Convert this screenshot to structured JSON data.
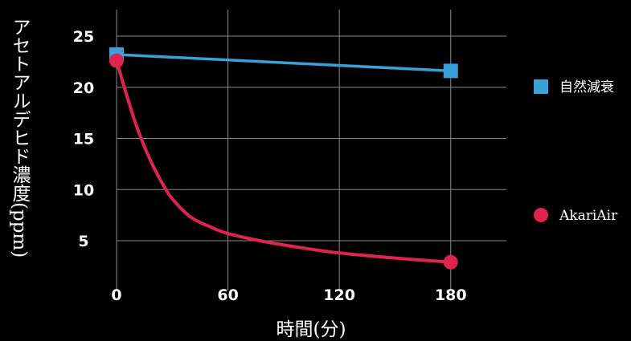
{
  "chart_data": {
    "type": "line",
    "xlabel": "時間(分)",
    "ylabel": "アセトアルデヒド濃度(ppm)",
    "xlim": [
      0,
      210
    ],
    "ylim": [
      0,
      27
    ],
    "x_ticks": [
      0,
      60,
      120,
      180
    ],
    "y_ticks": [
      5,
      10,
      15,
      20,
      25
    ],
    "grid": true,
    "legend_position": "right",
    "series": [
      {
        "name": "自然減衰",
        "color": "#3aa0d8",
        "marker": "square",
        "x": [
          0,
          180
        ],
        "y": [
          23.2,
          21.6
        ]
      },
      {
        "name": "AkariAir",
        "color": "#e0244d",
        "marker": "circle",
        "curve": "smooth",
        "x": [
          0,
          180
        ],
        "y": [
          22.6,
          2.9
        ],
        "curve_points": [
          [
            0,
            22.6
          ],
          [
            5,
            19.5
          ],
          [
            10,
            16.6
          ],
          [
            15,
            14.2
          ],
          [
            20,
            12.2
          ],
          [
            25,
            10.5
          ],
          [
            30,
            9.1
          ],
          [
            40,
            7.3
          ],
          [
            50,
            6.4
          ],
          [
            60,
            5.7
          ],
          [
            80,
            4.9
          ],
          [
            100,
            4.3
          ],
          [
            120,
            3.8
          ],
          [
            150,
            3.3
          ],
          [
            180,
            2.9
          ]
        ]
      }
    ]
  }
}
